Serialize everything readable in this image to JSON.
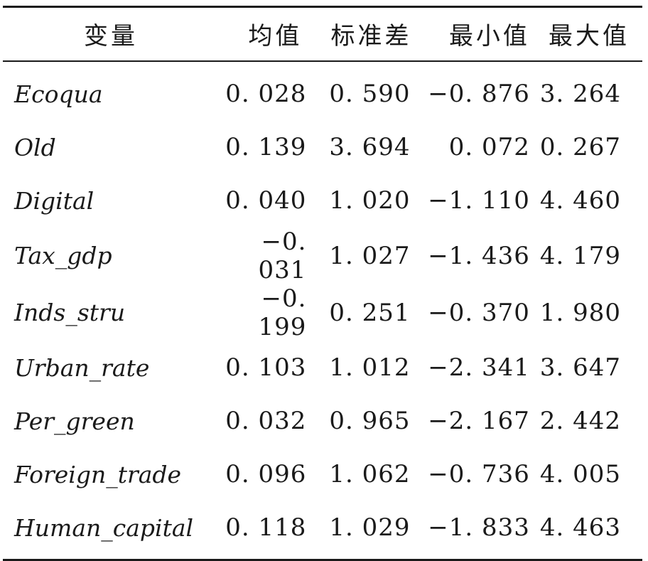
{
  "table": {
    "headers": {
      "variable": "变量",
      "mean": "均值",
      "sd": "标准差",
      "min": "最小值",
      "max": "最大值"
    },
    "rows": [
      {
        "variable": "Ecoqua",
        "mean": "0. 028",
        "sd": "0. 590",
        "min": "−0. 876",
        "max": "3. 264"
      },
      {
        "variable": "Old",
        "mean": "0. 139",
        "sd": "3. 694",
        "min": "0. 072",
        "max": "0. 267"
      },
      {
        "variable": "Digital",
        "mean": "0. 040",
        "sd": "1. 020",
        "min": "−1. 110",
        "max": "4. 460"
      },
      {
        "variable": "Tax_gdp",
        "mean": "−0. 031",
        "sd": "1. 027",
        "min": "−1. 436",
        "max": "4. 179"
      },
      {
        "variable": "Inds_stru",
        "mean": "−0. 199",
        "sd": "0. 251",
        "min": "−0. 370",
        "max": "1. 980"
      },
      {
        "variable": "Urban_rate",
        "mean": "0. 103",
        "sd": "1. 012",
        "min": "−2. 341",
        "max": "3. 647"
      },
      {
        "variable": "Per_green",
        "mean": "0. 032",
        "sd": "0. 965",
        "min": "−2. 167",
        "max": "2. 442"
      },
      {
        "variable": "Foreign_trade",
        "mean": "0. 096",
        "sd": "1. 062",
        "min": "−0. 736",
        "max": "4. 005"
      },
      {
        "variable": "Human_capital",
        "mean": "0. 118",
        "sd": "1. 029",
        "min": "−1. 833",
        "max": "4. 463"
      }
    ]
  }
}
